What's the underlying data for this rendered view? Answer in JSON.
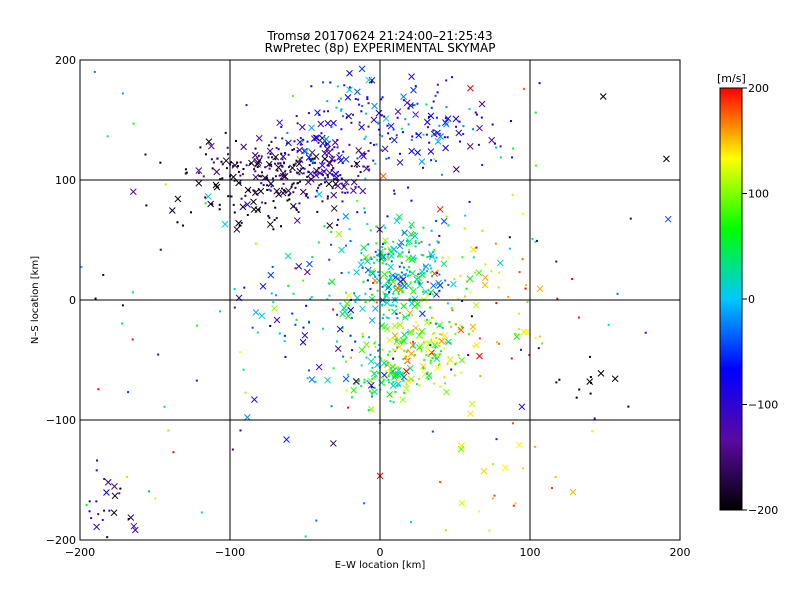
{
  "chart_data": {
    "type": "scatter",
    "title": "Tromsø 20170624 21:24:00–21:25:43",
    "subtitle": "RwPretec (8p) EXPERIMENTAL SKYMAP",
    "xlabel": "E–W location [km]",
    "ylabel": "N–S location [km]",
    "xlim": [
      -200,
      200
    ],
    "ylim": [
      -200,
      200
    ],
    "xticks": [
      "−200",
      "−100",
      "0",
      "100",
      "200"
    ],
    "xtick_values": [
      -200,
      -100,
      0,
      100,
      200
    ],
    "yticks": [
      "200",
      "100",
      "0",
      "−100",
      "−200"
    ],
    "ytick_values": [
      200,
      100,
      0,
      -100,
      -200
    ],
    "grid": true,
    "colorbar": {
      "label": "[m/s]",
      "range": [
        -200,
        200
      ],
      "ticks": [
        "200",
        "100",
        "0",
        "−100",
        "−200"
      ],
      "tick_values": [
        200,
        100,
        0,
        -100,
        -200
      ],
      "colors": [
        "#000000",
        "#5a0aa0",
        "#0000ff",
        "#00c8ff",
        "#00ff00",
        "#ffff00",
        "#ff0000"
      ]
    },
    "marker_types": [
      "dot",
      "cross"
    ],
    "clusters": [
      {
        "cx": -70,
        "cy": 110,
        "sx": 28,
        "sy": 14,
        "n": 180,
        "v": -170,
        "vs": 30
      },
      {
        "cx": -40,
        "cy": 110,
        "sx": 22,
        "sy": 18,
        "n": 120,
        "v": -110,
        "vs": 30
      },
      {
        "cx": -10,
        "cy": 150,
        "sx": 40,
        "sy": 18,
        "n": 110,
        "v": -60,
        "vs": 40
      },
      {
        "cx": 30,
        "cy": 140,
        "sx": 30,
        "sy": 20,
        "n": 70,
        "v": -40,
        "vs": 45
      },
      {
        "cx": -85,
        "cy": 80,
        "sx": 25,
        "sy": 15,
        "n": 60,
        "v": -190,
        "vs": 15
      },
      {
        "cx": 10,
        "cy": 25,
        "sx": 18,
        "sy": 25,
        "n": 260,
        "v": 20,
        "vs": 40
      },
      {
        "cx": 25,
        "cy": -40,
        "sx": 18,
        "sy": 18,
        "n": 140,
        "v": 110,
        "vs": 45
      },
      {
        "cx": 5,
        "cy": -65,
        "sx": 12,
        "sy": 10,
        "n": 90,
        "v": 60,
        "vs": 50
      },
      {
        "cx": -40,
        "cy": -20,
        "sx": 40,
        "sy": 35,
        "n": 90,
        "v": -30,
        "vs": 50
      },
      {
        "cx": 60,
        "cy": 10,
        "sx": 30,
        "sy": 30,
        "n": 70,
        "v": 140,
        "vs": 40
      },
      {
        "cx": -180,
        "cy": -170,
        "sx": 12,
        "sy": 15,
        "n": 25,
        "v": -130,
        "vs": 60
      },
      {
        "cx": 140,
        "cy": -70,
        "sx": 15,
        "sy": 12,
        "n": 12,
        "v": -195,
        "vs": 10
      },
      {
        "cx": 80,
        "cy": -150,
        "sx": 25,
        "sy": 25,
        "n": 20,
        "v": 150,
        "vs": 30
      },
      {
        "cx": 0,
        "cy": 0,
        "sx": 140,
        "sy": 140,
        "n": 180,
        "v": 0,
        "vs": 120
      }
    ]
  }
}
